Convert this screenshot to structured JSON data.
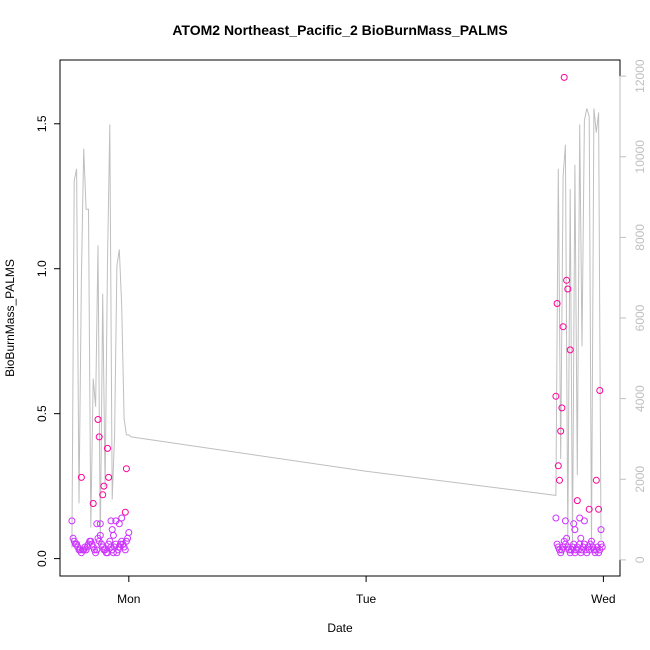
{
  "chart_data": {
    "type": "scatter",
    "title": "ATOM2 Northeast_Pacific_2 BioBurnMass_PALMS",
    "xlabel": "Date",
    "ylabel": "BioBurnMass_PALMS",
    "x_ticks": [
      {
        "value": 1.0,
        "label": "Mon"
      },
      {
        "value": 2.0,
        "label": "Tue"
      },
      {
        "value": 3.0,
        "label": "Wed"
      }
    ],
    "xlim": [
      0.71,
      3.07
    ],
    "ylim": [
      -0.06,
      1.72
    ],
    "y_ticks": [
      {
        "value": 0.0,
        "label": "0.0"
      },
      {
        "value": 0.5,
        "label": "0.5"
      },
      {
        "value": 1.0,
        "label": "1.0"
      },
      {
        "value": 1.5,
        "label": "1.5"
      }
    ],
    "y2lim": [
      -400,
      12400
    ],
    "y2_ticks": [
      {
        "value": 0,
        "label": "0"
      },
      {
        "value": 2000,
        "label": "2000"
      },
      {
        "value": 4000,
        "label": "4000"
      },
      {
        "value": 6000,
        "label": "6000"
      },
      {
        "value": 8000,
        "label": "8000"
      },
      {
        "value": 10000,
        "label": "10000"
      },
      {
        "value": 12000,
        "label": "12000"
      }
    ],
    "grid": false,
    "colors": {
      "points_low": "#cc33ff",
      "points_high": "#ff0099",
      "secondary_line": "#bfbfbf"
    },
    "secondary_series": {
      "axis": "right",
      "x": [
        0.76,
        0.77,
        0.78,
        0.79,
        0.8,
        0.81,
        0.82,
        0.83,
        0.84,
        0.85,
        0.86,
        0.87,
        0.88,
        0.89,
        0.9,
        0.91,
        0.92,
        0.93,
        0.94,
        0.95,
        0.96,
        0.97,
        0.98,
        0.99,
        1.0,
        1.01,
        2.0,
        2.8,
        2.81,
        2.82,
        2.83,
        2.84,
        2.85,
        2.86,
        2.87,
        2.88,
        2.89,
        2.9,
        2.91,
        2.92,
        2.93,
        2.94,
        2.95,
        2.96,
        2.97,
        2.98,
        2.99
      ],
      "y": [
        300,
        9400,
        9700,
        1400,
        7000,
        10200,
        8700,
        8700,
        800,
        4500,
        3800,
        7800,
        400,
        6600,
        1800,
        7400,
        10800,
        1500,
        3100,
        7300,
        7700,
        6300,
        3500,
        3100,
        3100,
        3050,
        2200,
        1600,
        9700,
        2500,
        9500,
        10300,
        500,
        9200,
        300,
        9800,
        2100,
        10800,
        5300,
        10900,
        11200,
        11000,
        300,
        11200,
        10600,
        11100,
        500
      ]
    },
    "series": [
      {
        "x": [
          0.76,
          0.765,
          0.77,
          0.775,
          0.78,
          0.785,
          0.79,
          0.795,
          0.8,
          0.805,
          0.81,
          0.815,
          0.82,
          0.825,
          0.83,
          0.835,
          0.84,
          0.845,
          0.85,
          0.855,
          0.86,
          0.865,
          0.87,
          0.875,
          0.88,
          0.885,
          0.89,
          0.895,
          0.9,
          0.905,
          0.91,
          0.915,
          0.92,
          0.925,
          0.93,
          0.935,
          0.94,
          0.945,
          0.95,
          0.955,
          0.96,
          0.965,
          0.97,
          0.975,
          0.98,
          0.985,
          0.99,
          0.995,
          1.0,
          0.8,
          0.88,
          0.85,
          0.865,
          0.87,
          0.875,
          0.89,
          0.895,
          0.91,
          0.915,
          0.925,
          0.93,
          0.935,
          0.945,
          0.96,
          0.97,
          0.985,
          0.99
        ],
        "y": [
          0.13,
          0.07,
          0.06,
          0.05,
          0.05,
          0.04,
          0.03,
          0.03,
          0.02,
          0.03,
          0.03,
          0.04,
          0.03,
          0.04,
          0.05,
          0.06,
          0.06,
          0.05,
          0.04,
          0.03,
          0.02,
          0.03,
          0.07,
          0.06,
          0.08,
          0.05,
          0.04,
          0.03,
          0.03,
          0.02,
          0.02,
          0.05,
          0.06,
          0.04,
          0.03,
          0.02,
          0.04,
          0.05,
          0.02,
          0.03,
          0.04,
          0.05,
          0.06,
          0.05,
          0.04,
          0.03,
          0.06,
          0.07,
          0.09,
          0.28,
          0.12,
          0.19,
          0.12,
          0.48,
          0.42,
          0.22,
          0.25,
          0.38,
          0.28,
          0.13,
          0.1,
          0.08,
          0.13,
          0.12,
          0.14,
          0.16,
          0.31
        ]
      },
      {
        "x": [
          2.8,
          2.805,
          2.81,
          2.815,
          2.82,
          2.825,
          2.83,
          2.835,
          2.84,
          2.845,
          2.85,
          2.855,
          2.86,
          2.865,
          2.87,
          2.875,
          2.88,
          2.885,
          2.89,
          2.895,
          2.9,
          2.905,
          2.91,
          2.915,
          2.92,
          2.925,
          2.93,
          2.935,
          2.94,
          2.945,
          2.95,
          2.955,
          2.96,
          2.965,
          2.97,
          2.975,
          2.98,
          2.985,
          2.99,
          2.995,
          2.8,
          2.805,
          2.81,
          2.815,
          2.82,
          2.825,
          2.83,
          2.835,
          2.84,
          2.845,
          2.85,
          2.86,
          2.875,
          2.88,
          2.89,
          2.9,
          2.905,
          2.92,
          2.94,
          2.97,
          2.98,
          2.985,
          2.99
        ],
        "y": [
          0.14,
          0.05,
          0.04,
          0.03,
          0.02,
          0.03,
          0.04,
          0.06,
          0.05,
          0.07,
          0.04,
          0.03,
          0.02,
          0.03,
          0.04,
          0.05,
          0.02,
          0.03,
          0.04,
          0.03,
          0.05,
          0.02,
          0.03,
          0.04,
          0.05,
          0.03,
          0.02,
          0.04,
          0.03,
          0.05,
          0.06,
          0.04,
          0.03,
          0.02,
          0.03,
          0.04,
          0.02,
          0.03,
          0.05,
          0.04,
          0.56,
          0.88,
          0.32,
          0.27,
          0.44,
          0.52,
          0.8,
          1.66,
          0.13,
          0.96,
          0.93,
          0.72,
          0.12,
          0.1,
          0.2,
          0.14,
          0.07,
          0.13,
          0.17,
          0.27,
          0.17,
          0.58,
          0.1
        ]
      }
    ]
  }
}
